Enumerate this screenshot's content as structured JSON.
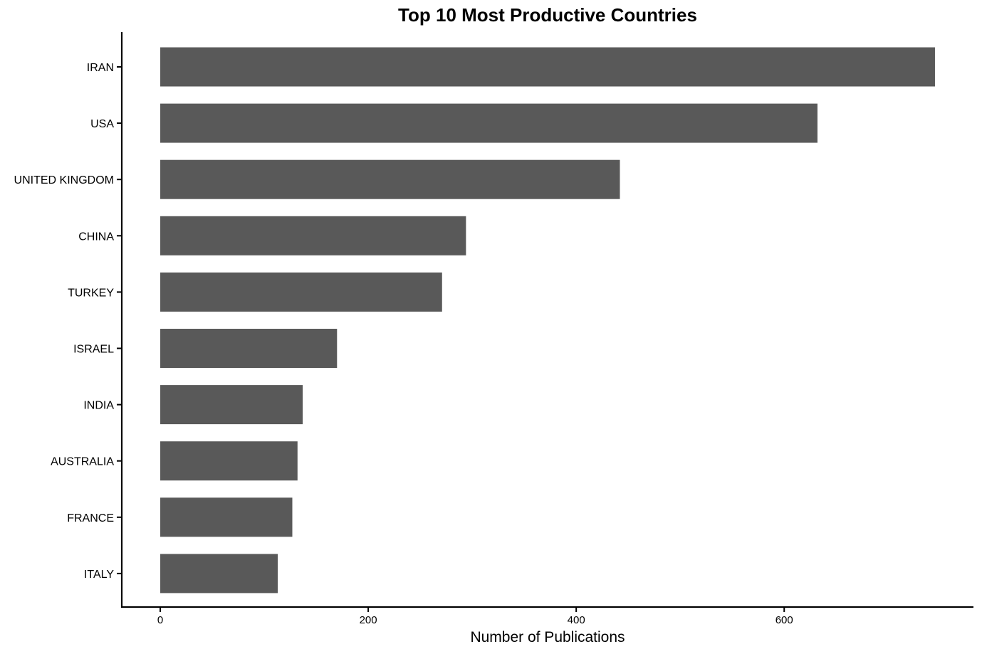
{
  "chart_data": {
    "type": "bar",
    "orientation": "horizontal",
    "title": "Top 10 Most Productive Countries",
    "xlabel": "Number of Publications",
    "ylabel": "",
    "categories": [
      "IRAN",
      "USA",
      "UNITED KINGDOM",
      "CHINA",
      "TURKEY",
      "ISRAEL",
      "INDIA",
      "AUSTRALIA",
      "FRANCE",
      "ITALY"
    ],
    "values": [
      745,
      632,
      442,
      294,
      271,
      170,
      137,
      132,
      127,
      113
    ],
    "x_ticks": [
      0,
      200,
      400,
      600
    ],
    "xlim": [
      -37,
      782
    ],
    "grid": false,
    "bar_color": "#595959",
    "legend": "none"
  }
}
